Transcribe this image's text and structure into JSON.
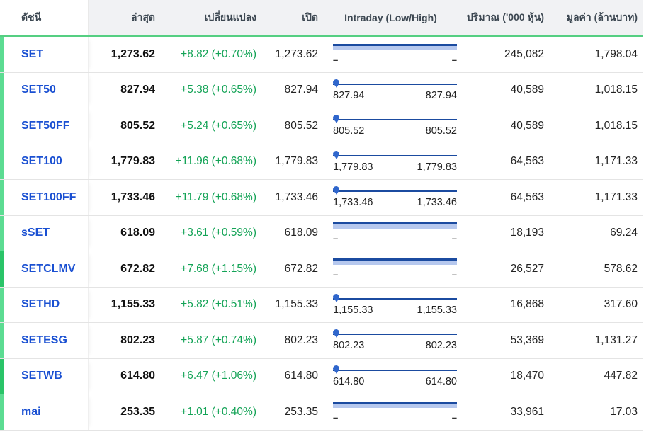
{
  "table": {
    "columns": [
      {
        "key": "index",
        "label": "ดัชนี"
      },
      {
        "key": "last",
        "label": "ล่าสุด"
      },
      {
        "key": "change",
        "label": "เปลี่ยนแปลง"
      },
      {
        "key": "open",
        "label": "เปิด"
      },
      {
        "key": "intraday",
        "label": "Intraday (Low/High)"
      },
      {
        "key": "volume",
        "label": "ปริมาณ ('000 หุ้น)"
      },
      {
        "key": "value",
        "label": "มูลค่า (ล้านบาท)"
      }
    ],
    "rows": [
      {
        "index": "SET",
        "last": "1,273.62",
        "change": "+8.82 (+0.70%)",
        "open": "1,273.62",
        "intraday_type": "band",
        "low": "–",
        "high": "–",
        "volume": "245,082",
        "value": "1,798.04",
        "accent": "normal"
      },
      {
        "index": "SET50",
        "last": "827.94",
        "change": "+5.38 (+0.65%)",
        "open": "827.94",
        "intraday_type": "pin",
        "low": "827.94",
        "high": "827.94",
        "volume": "40,589",
        "value": "1,018.15",
        "accent": "normal"
      },
      {
        "index": "SET50FF",
        "last": "805.52",
        "change": "+5.24 (+0.65%)",
        "open": "805.52",
        "intraday_type": "pin",
        "low": "805.52",
        "high": "805.52",
        "volume": "40,589",
        "value": "1,018.15",
        "accent": "normal"
      },
      {
        "index": "SET100",
        "last": "1,779.83",
        "change": "+11.96 (+0.68%)",
        "open": "1,779.83",
        "intraday_type": "pin",
        "low": "1,779.83",
        "high": "1,779.83",
        "volume": "64,563",
        "value": "1,171.33",
        "accent": "normal"
      },
      {
        "index": "SET100FF",
        "last": "1,733.46",
        "change": "+11.79 (+0.68%)",
        "open": "1,733.46",
        "intraday_type": "pin",
        "low": "1,733.46",
        "high": "1,733.46",
        "volume": "64,563",
        "value": "1,171.33",
        "accent": "normal"
      },
      {
        "index": "sSET",
        "last": "618.09",
        "change": "+3.61 (+0.59%)",
        "open": "618.09",
        "intraday_type": "band",
        "low": "–",
        "high": "–",
        "volume": "18,193",
        "value": "69.24",
        "accent": "normal"
      },
      {
        "index": "SETCLMV",
        "last": "672.82",
        "change": "+7.68 (+1.15%)",
        "open": "672.82",
        "intraday_type": "band",
        "low": "–",
        "high": "–",
        "volume": "26,527",
        "value": "578.62",
        "accent": "strong"
      },
      {
        "index": "SETHD",
        "last": "1,155.33",
        "change": "+5.82 (+0.51%)",
        "open": "1,155.33",
        "intraday_type": "pin",
        "low": "1,155.33",
        "high": "1,155.33",
        "volume": "16,868",
        "value": "317.60",
        "accent": "normal"
      },
      {
        "index": "SETESG",
        "last": "802.23",
        "change": "+5.87 (+0.74%)",
        "open": "802.23",
        "intraday_type": "pin",
        "low": "802.23",
        "high": "802.23",
        "volume": "53,369",
        "value": "1,131.27",
        "accent": "normal"
      },
      {
        "index": "SETWB",
        "last": "614.80",
        "change": "+6.47 (+1.06%)",
        "open": "614.80",
        "intraday_type": "pin",
        "low": "614.80",
        "high": "614.80",
        "volume": "18,470",
        "value": "447.82",
        "accent": "strong"
      },
      {
        "index": "mai",
        "last": "253.35",
        "change": "+1.01 (+0.40%)",
        "open": "253.35",
        "intraday_type": "band",
        "low": "–",
        "high": "–",
        "volume": "33,961",
        "value": "17.03",
        "accent": "normal"
      }
    ]
  },
  "colors": {
    "header_underline": "#55cf82",
    "accent_normal": "#5cdc92",
    "accent_strong": "#2ac468",
    "index_link": "#1a50d2",
    "change_positive": "#13a356",
    "range_band_fill": "#b6c8ee",
    "range_line": "#1b4ba0",
    "pin": "#2f66cc",
    "header_bg": "#f1f2f4"
  }
}
